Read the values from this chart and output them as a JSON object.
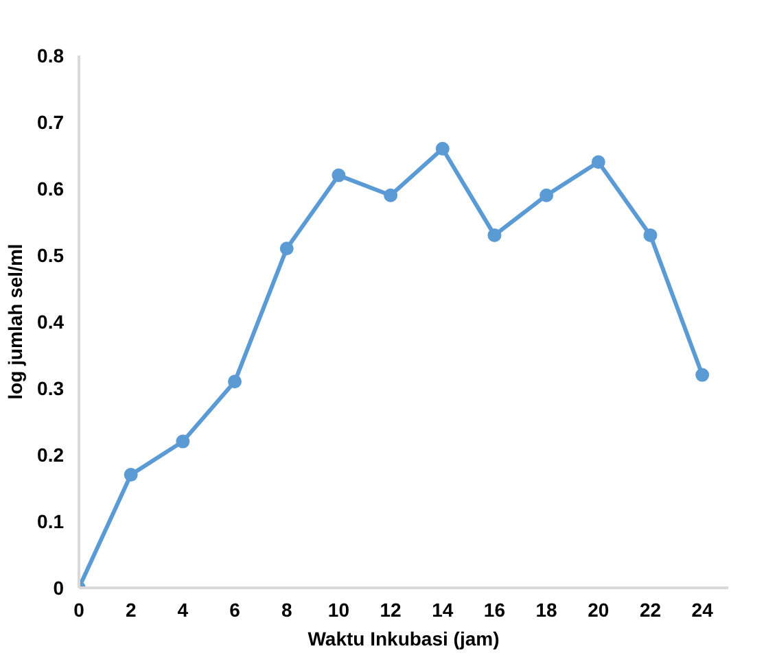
{
  "chart_data": {
    "type": "line",
    "xlabel": "Waktu Inkubasi (jam)",
    "ylabel": "log jumlah sel/ml",
    "x": [
      0,
      2,
      4,
      6,
      8,
      10,
      12,
      14,
      16,
      18,
      20,
      22,
      24
    ],
    "series": [
      {
        "color": "#5b9bd5",
        "values": [
          0,
          0.17,
          0.22,
          0.31,
          0.51,
          0.62,
          0.59,
          0.66,
          0.53,
          0.59,
          0.64,
          0.53,
          0.32
        ]
      }
    ],
    "xlim": [
      0,
      25
    ],
    "xticks": [
      0,
      2,
      4,
      6,
      8,
      10,
      12,
      14,
      16,
      18,
      20,
      22,
      24
    ],
    "ylim": [
      0,
      0.8
    ],
    "yticks": [
      0,
      0.1,
      0.2,
      0.3,
      0.4,
      0.5,
      0.6,
      0.7,
      0.8
    ],
    "grid": false,
    "marker": "circle",
    "line_style": "solid"
  }
}
